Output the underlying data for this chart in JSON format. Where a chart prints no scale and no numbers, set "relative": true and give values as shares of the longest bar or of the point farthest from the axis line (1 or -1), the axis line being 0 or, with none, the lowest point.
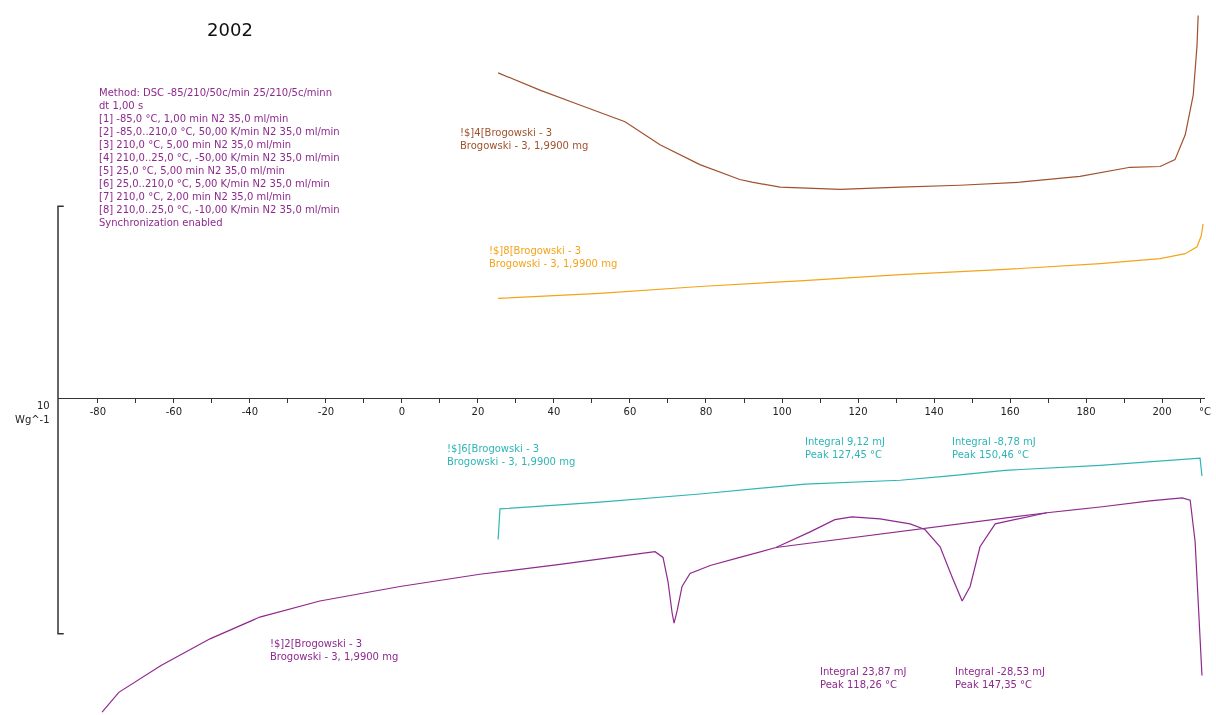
{
  "chart_data": {
    "type": "line",
    "title": "2002",
    "xlabel": "°C",
    "ylabel": "Wg^-1",
    "relative": true,
    "legend": false,
    "marker": "none",
    "line_style": "solid",
    "xlim": [
      -90.5,
      211.3
    ],
    "xticks": [
      -80,
      {
        "value": -70,
        "label": null
      },
      -60,
      {
        "value": -50,
        "label": null
      },
      -40,
      {
        "value": -30,
        "label": null
      },
      -20,
      {
        "value": -10,
        "label": null
      },
      0,
      {
        "value": 10,
        "label": null
      },
      20,
      {
        "value": 30,
        "label": null
      },
      40,
      {
        "value": 50,
        "label": null
      },
      60,
      {
        "value": 70,
        "label": null
      },
      80,
      {
        "value": 90,
        "label": null
      },
      100,
      {
        "value": 110,
        "label": null
      },
      120,
      {
        "value": 130,
        "label": null
      },
      140,
      {
        "value": 150,
        "label": null
      },
      160,
      {
        "value": 170,
        "label": null
      },
      180,
      {
        "value": 190,
        "label": null
      },
      200,
      {
        "value": 210,
        "label": null
      }
    ],
    "series": [
      {
        "name": "!$]4[Brogowski - 3\nBrogowski - 3, 1,9900 mg",
        "color": "#a0522d",
        "x": [
          25.3,
          36.3,
          46.8,
          58.7,
          67.9,
          78.4,
          88.9,
          92.1,
          99.5,
          115.3,
          131.1,
          146.8,
          162.6,
          178.4,
          191.6,
          199.5,
          203.4,
          206.1,
          208.2,
          209.2,
          209.5
        ],
        "values": [
          0.85,
          0.805,
          0.766,
          0.722,
          0.662,
          0.61,
          0.571,
          0.564,
          0.551,
          0.545,
          0.551,
          0.556,
          0.564,
          0.579,
          0.603,
          0.605,
          0.623,
          0.688,
          0.792,
          0.922,
          1.0
        ]
      },
      {
        "name": "!$]8[Brogowski - 3\nBrogowski - 3, 1,9900 mg",
        "color": "#f5a31a",
        "x": [
          25.3,
          52.1,
          78.4,
          104.7,
          131.1,
          157.4,
          183.7,
          199.5,
          206.1,
          209.2,
          210.3,
          210.8
        ],
        "values": [
          0.26,
          0.273,
          0.291,
          0.306,
          0.322,
          0.335,
          0.351,
          0.364,
          0.377,
          0.395,
          0.423,
          0.455
        ]
      },
      {
        "name": "!$]6[Brogowski - 3\nBrogowski - 3, 1,9900 mg",
        "color": "#2fb5b5",
        "x": [
          25.3,
          25.8,
          52.1,
          78.4,
          106.1,
          131.1,
          143.4,
          158.7,
          183.7,
          210.0,
          210.5
        ],
        "values": [
          -0.371,
          -0.291,
          -0.273,
          -0.252,
          -0.226,
          -0.216,
          -0.205,
          -0.19,
          -0.177,
          -0.158,
          -0.205
        ]
      },
      {
        "name": "!$]2[Brogowski - 3\nBrogowski - 3, 1,9900 mg",
        "color": "#8e2a8e",
        "x": [
          -78.9,
          -74.5,
          -63.4,
          -50.5,
          -37.4,
          -21.6,
          -0.5,
          20.5,
          41.6,
          62.6,
          66.6,
          68.7,
          70.0,
          71.1,
          71.6,
          72.4,
          73.7,
          75.8,
          81.1,
          88.9,
          98.4,
          107.4,
          113.9,
          118.4,
          125.8,
          133.7,
          137.6,
          141.6,
          144.7,
          147.4,
          149.5,
          152.1,
          156.1,
          169.7,
          183.7,
          196.8,
          205.3,
          207.4,
          208.7,
          209.5,
          210.5
        ],
        "values": [
          -0.823,
          -0.771,
          -0.701,
          -0.631,
          -0.574,
          -0.532,
          -0.494,
          -0.462,
          -0.436,
          -0.408,
          -0.403,
          -0.418,
          -0.481,
          -0.564,
          -0.59,
          -0.558,
          -0.494,
          -0.46,
          -0.439,
          -0.418,
          -0.392,
          -0.351,
          -0.319,
          -0.312,
          -0.317,
          -0.33,
          -0.345,
          -0.39,
          -0.468,
          -0.532,
          -0.494,
          -0.39,
          -0.33,
          -0.301,
          -0.286,
          -0.27,
          -0.262,
          -0.268,
          -0.377,
          -0.532,
          -0.727
        ]
      },
      {
        "color": "#8e2a8e",
        "x": [
          98.4,
          169.7
        ],
        "values": [
          -0.392,
          -0.301
        ]
      }
    ],
    "annotations": [
      "Method: DSC -85/210/50c/min 25/210/5c/minn\ndt 1,00 s\n[1] -85,0 °C, 1,00 min N2 35,0 ml/min\n[2] -85,0..210,0 °C, 50,00 K/min N2 35,0 ml/min\n[3] 210,0 °C, 5,00 min N2 35,0 ml/min\n[4] 210,0..25,0 °C, -50,00 K/min N2 35,0 ml/min\n[5] 25,0 °C, 5,00 min N2 35,0 ml/min\n[6] 25,0..210,0 °C, 5,00 K/min N2 35,0 ml/min\n[7] 210,0 °C, 2,00 min N2 35,0 ml/min\n[8] 210,0..25,0 °C, -10,00 K/min N2 35,0 ml/min\nSynchronization enabled",
      "10",
      {
        "text": "Integral 9,12 mJ\nPeak 127,45 °C",
        "x": 127.45,
        "y": -0.21
      },
      {
        "text": "Integral -8,78 mJ\nPeak 150,46 °C",
        "x": 150.46,
        "y": -0.195
      },
      "Integral 23,87 mJ\nPeak 118,26 °C",
      "Integral -28,53 mJ\nPeak 147,35 °C"
    ]
  }
}
